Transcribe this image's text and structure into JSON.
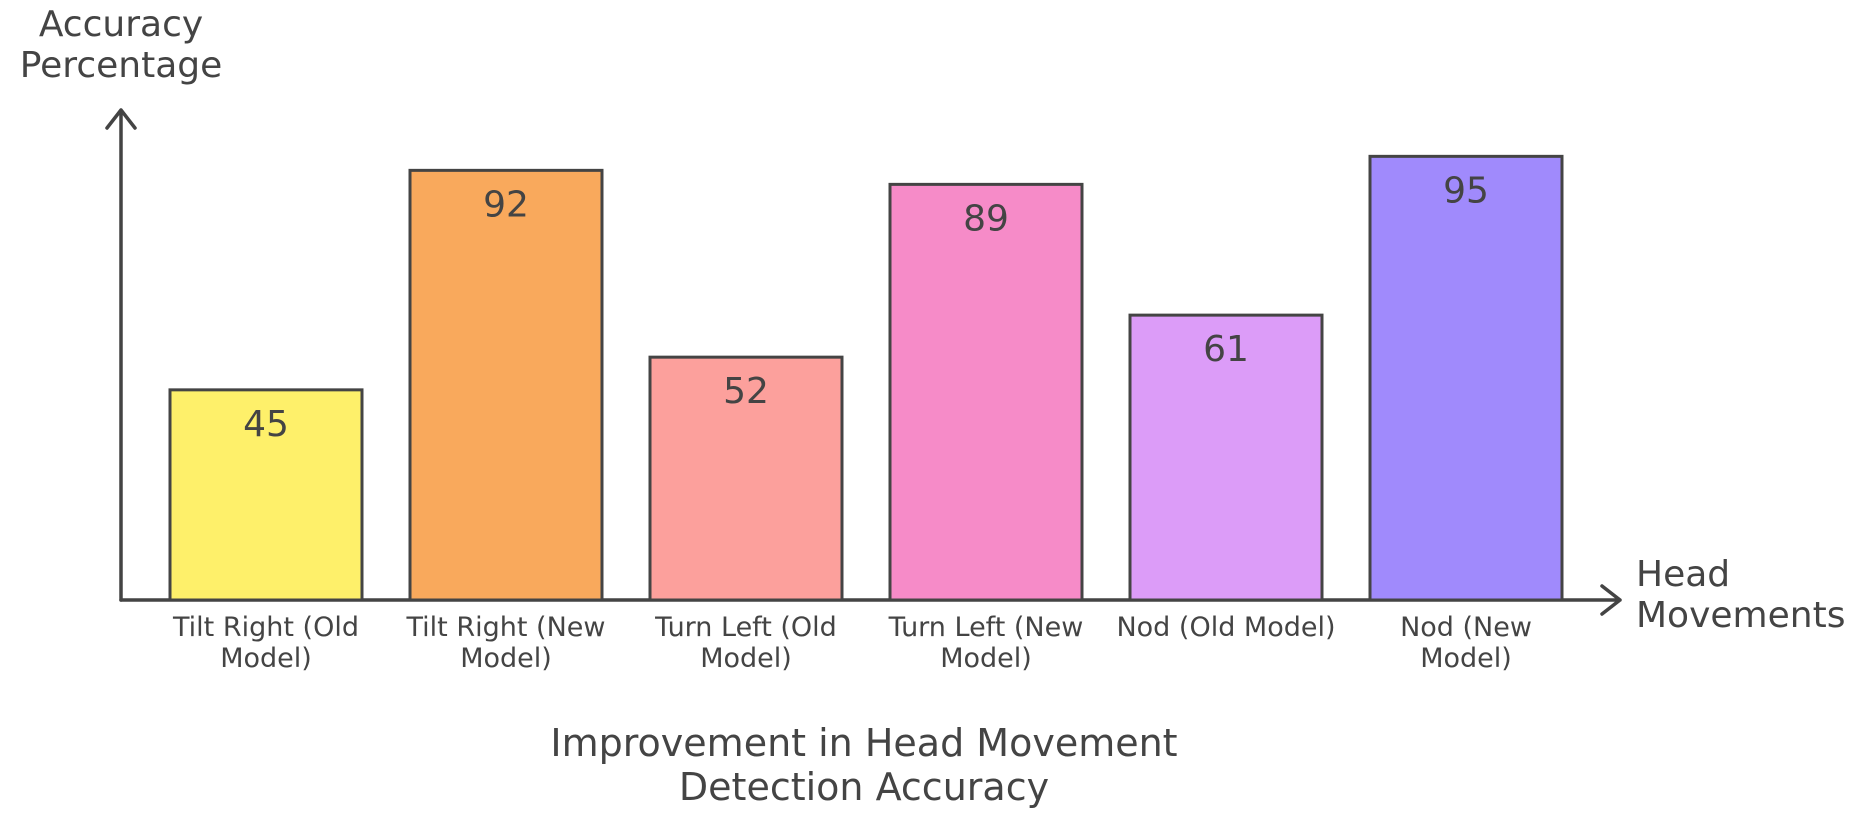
{
  "chart_data": {
    "type": "bar",
    "title": "Improvement in Head Movement Detection Accuracy",
    "x_label": "Head Movements",
    "y_label": "Accuracy Percentage",
    "categories": [
      "Tilt Right (Old Model)",
      "Tilt Right (New Model)",
      "Turn Left (Old Model)",
      "Turn Left (New Model)",
      "Nod (Old Model)",
      "Nod (New Model)"
    ],
    "values": [
      45,
      92,
      52,
      89,
      61,
      95
    ],
    "colors": [
      "#fef06a",
      "#f9a95c",
      "#fca09c",
      "#f68bc8",
      "#dc9cf8",
      "#a08afc"
    ],
    "ylim": [
      0,
      100
    ]
  }
}
